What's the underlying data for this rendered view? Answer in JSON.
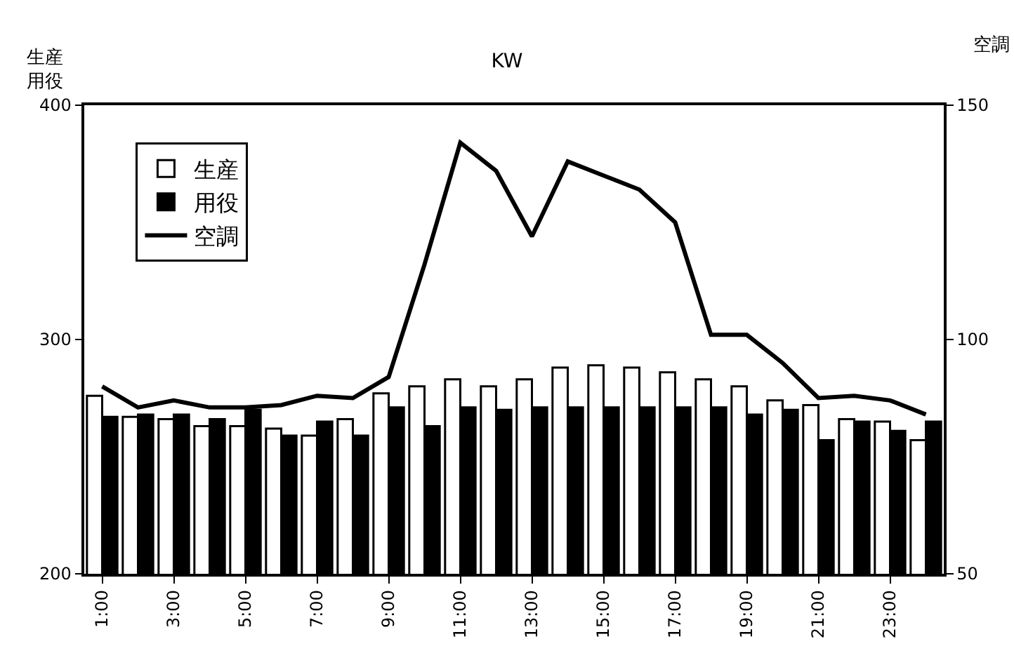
{
  "chart_data": {
    "type": "bar",
    "title": "KW",
    "ylabel": "生産用役",
    "y2label": "空調",
    "categories": [
      "1:00",
      null,
      "3:00",
      null,
      "5:00",
      null,
      "7:00",
      null,
      "9:00",
      null,
      "11:00",
      null,
      "13:00",
      null,
      "15:00",
      null,
      "17:00",
      null,
      "19:00",
      null,
      "21:00",
      null,
      "23:00",
      null
    ],
    "series": [
      {
        "name": "生産",
        "color": "#ffffff",
        "values": [
          276,
          267,
          266,
          263,
          263,
          262,
          259,
          266,
          277,
          280,
          283,
          280,
          283,
          288,
          289,
          288,
          286,
          283,
          280,
          274,
          272,
          266,
          265,
          257
        ]
      },
      {
        "name": "用役",
        "color": "#000000",
        "values": [
          267,
          268,
          268,
          266,
          270,
          259,
          265,
          259,
          271,
          263,
          271,
          270,
          271,
          271,
          271,
          271,
          271,
          271,
          268,
          270,
          257,
          265,
          261,
          265
        ]
      },
      {
        "name": "空調",
        "type": "line",
        "axis": "y2",
        "color": "#000000",
        "values": [
          90,
          85.5,
          87,
          85.5,
          85.5,
          86,
          88,
          87.5,
          92,
          116,
          142,
          136,
          122,
          138,
          135,
          132,
          125,
          101,
          101,
          95,
          87.5,
          88,
          87,
          84
        ]
      }
    ],
    "ylim": [
      200,
      400
    ],
    "yticks": [
      200,
      300,
      400
    ],
    "y2lim": [
      50,
      150
    ],
    "y2ticks": [
      50,
      100,
      150
    ],
    "legend": "top left",
    "marker": "none",
    "line_style": "solid"
  }
}
